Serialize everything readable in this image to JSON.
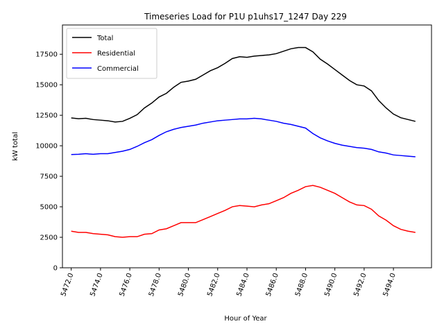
{
  "chart_data": {
    "type": "line",
    "title": "Timeseries Load for P1U p1uhs17_1247  Day 229",
    "xlabel": "Hour of Year",
    "ylabel": "kW total",
    "xlim": [
      5471.4,
      5496.6
    ],
    "ylim": [
      0,
      19900
    ],
    "xticks": [
      5472,
      5474,
      5476,
      5478,
      5480,
      5482,
      5484,
      5486,
      5488,
      5490,
      5492,
      5494
    ],
    "xtick_labels": [
      "5472.0",
      "5474.0",
      "5476.0",
      "5478.0",
      "5480.0",
      "5482.0",
      "5484.0",
      "5486.0",
      "5488.0",
      "5490.0",
      "5492.0",
      "5494.0"
    ],
    "yticks": [
      0,
      2500,
      5000,
      7500,
      10000,
      12500,
      15000,
      17500
    ],
    "ytick_labels": [
      "0",
      "2500",
      "5000",
      "7500",
      "10000",
      "12500",
      "15000",
      "17500"
    ],
    "legend_position": "top-left",
    "grid": false,
    "x": [
      5472.0,
      5472.5,
      5473.0,
      5473.5,
      5474.0,
      5474.5,
      5475.0,
      5475.5,
      5476.0,
      5476.5,
      5477.0,
      5477.5,
      5478.0,
      5478.5,
      5479.0,
      5479.5,
      5480.0,
      5480.5,
      5481.0,
      5481.5,
      5482.0,
      5482.5,
      5483.0,
      5483.5,
      5484.0,
      5484.5,
      5485.0,
      5485.5,
      5486.0,
      5486.5,
      5487.0,
      5487.5,
      5488.0,
      5488.5,
      5489.0,
      5489.5,
      5490.0,
      5490.5,
      5491.0,
      5491.5,
      5492.0,
      5492.5,
      5493.0,
      5493.5,
      5494.0,
      5494.5,
      5495.0,
      5495.5
    ],
    "series": [
      {
        "name": "Total",
        "color": "#000000",
        "values": [
          12280,
          12220,
          12250,
          12150,
          12100,
          12050,
          11950,
          12000,
          12250,
          12550,
          13100,
          13500,
          14000,
          14300,
          14800,
          15200,
          15300,
          15450,
          15800,
          16150,
          16400,
          16750,
          17150,
          17300,
          17250,
          17350,
          17400,
          17450,
          17550,
          17750,
          17950,
          18050,
          18050,
          17700,
          17100,
          16700,
          16250,
          15800,
          15350,
          15000,
          14900,
          14500,
          13700,
          13100,
          12600,
          12300,
          12150,
          12000
        ]
      },
      {
        "name": "Residential",
        "color": "#ff0000",
        "values": [
          3000,
          2900,
          2900,
          2800,
          2750,
          2700,
          2550,
          2500,
          2550,
          2550,
          2750,
          2800,
          3100,
          3200,
          3450,
          3700,
          3700,
          3700,
          3950,
          4200,
          4450,
          4700,
          5000,
          5100,
          5050,
          5000,
          5150,
          5250,
          5500,
          5750,
          6100,
          6350,
          6650,
          6750,
          6600,
          6350,
          6100,
          5750,
          5400,
          5150,
          5100,
          4800,
          4250,
          3900,
          3450,
          3150,
          3000,
          2900
        ]
      },
      {
        "name": "Commercial",
        "color": "#0000ff",
        "values": [
          9280,
          9300,
          9350,
          9300,
          9350,
          9350,
          9450,
          9550,
          9700,
          9950,
          10250,
          10500,
          10850,
          11150,
          11350,
          11500,
          11600,
          11700,
          11850,
          11950,
          12050,
          12100,
          12150,
          12200,
          12200,
          12250,
          12200,
          12100,
          12000,
          11850,
          11750,
          11600,
          11450,
          11000,
          10650,
          10400,
          10200,
          10050,
          9950,
          9850,
          9800,
          9700,
          9500,
          9400,
          9250,
          9200,
          9150,
          9100
        ]
      }
    ]
  }
}
